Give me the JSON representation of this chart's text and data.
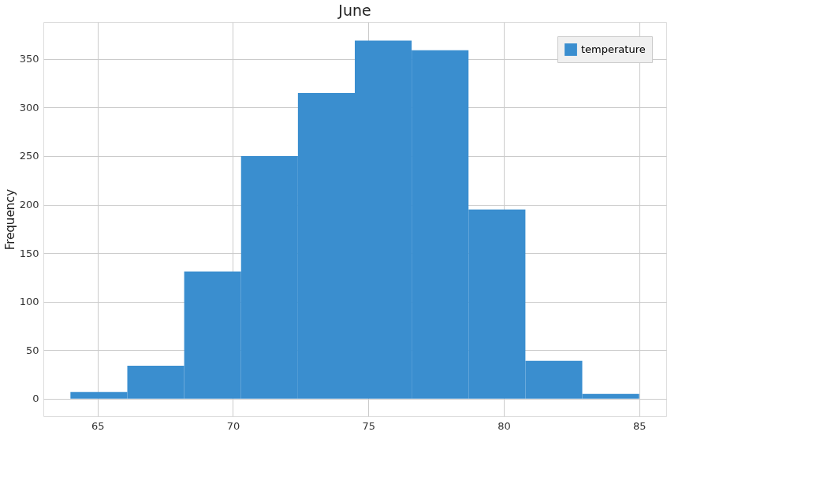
{
  "chart_data": {
    "type": "histogram",
    "title": "June",
    "ylabel": "Frequency",
    "bins": [
      64,
      66.1,
      68.2,
      70.3,
      72.4,
      74.5,
      76.6,
      78.7,
      80.8,
      82.9,
      85
    ],
    "series": [
      {
        "name": "temperature",
        "color": "#3a8ecf",
        "values": [
          7,
          34,
          131,
          250,
          315,
          369,
          359,
          195,
          39,
          5
        ]
      }
    ],
    "xlim": [
      63,
      86
    ],
    "ylim": [
      -18,
      388
    ],
    "xticks": [
      65,
      70,
      75,
      80,
      85
    ],
    "yticks": [
      0,
      50,
      100,
      150,
      200,
      250,
      300,
      350
    ],
    "grid": true,
    "legend": "top right"
  }
}
